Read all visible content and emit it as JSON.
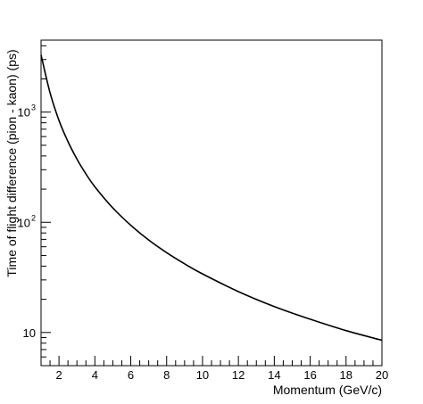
{
  "chart_data": {
    "type": "line",
    "title": "",
    "xlabel": "Momentum (GeV/c)",
    "ylabel": "Time of flight difference (pion - kaon) (ps)",
    "xlim": [
      1,
      20
    ],
    "ylim": [
      5,
      4500
    ],
    "yscale": "log",
    "grid": false,
    "legend": "none",
    "x_ticks": [
      "2",
      "4",
      "6",
      "8",
      "10",
      "12",
      "14",
      "16",
      "18",
      "20"
    ],
    "y_ticks": [
      {
        "base": "10",
        "exp": "",
        "value": 10
      },
      {
        "base": "10",
        "exp": "2",
        "value": 100
      },
      {
        "base": "10",
        "exp": "3",
        "value": 1000
      }
    ],
    "series": [
      {
        "color": "#000000",
        "x": [
          1.0,
          1.5,
          2,
          2.5,
          3,
          3.5,
          4,
          5,
          6,
          7,
          8,
          9,
          10,
          12,
          14,
          16,
          18,
          20
        ],
        "y": [
          3300,
          1500,
          840,
          540,
          375,
          275,
          210,
          135,
          94,
          69,
          53,
          42,
          34,
          23.5,
          17.2,
          13.2,
          10.4,
          8.5
        ]
      }
    ]
  }
}
